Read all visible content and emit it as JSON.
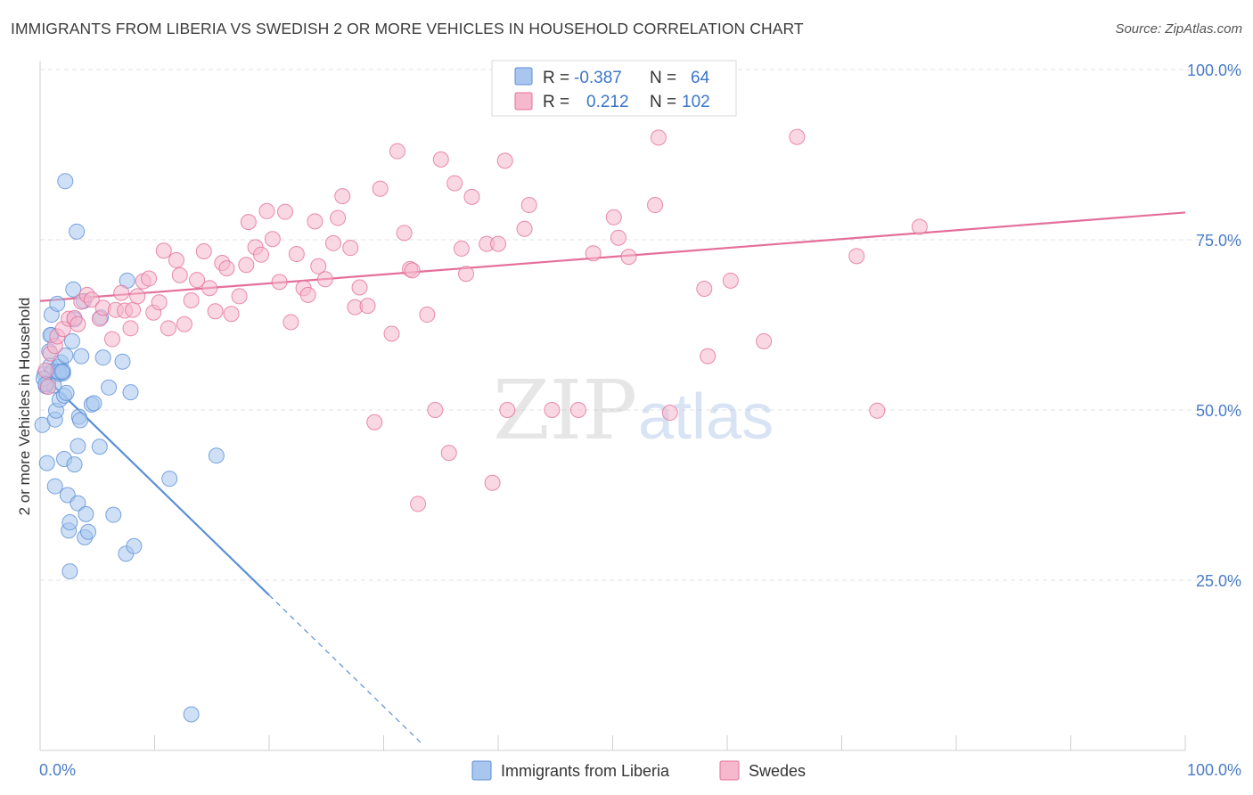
{
  "title": "IMMIGRANTS FROM LIBERIA VS SWEDISH 2 OR MORE VEHICLES IN HOUSEHOLD CORRELATION CHART",
  "source": "Source: ZipAtlas.com",
  "watermark": {
    "zip": "ZIP",
    "atlas": "atlas"
  },
  "colors": {
    "blue": "#5b8fd6",
    "blue_fill": "#a8c6ee",
    "pink": "#e46f9a",
    "pink_fill": "#f5b8cc",
    "axis_text": "#4a7cc7"
  },
  "legend": {
    "rows": [
      {
        "r_label": "R =",
        "r_value": "-0.387",
        "n_label": "N =",
        "n_value": "64"
      },
      {
        "r_label": "R =",
        "r_value": "0.212",
        "n_label": "N =",
        "n_value": "102"
      }
    ]
  },
  "bottom_legend": [
    "Immigrants from Liberia",
    "Swedes"
  ],
  "chart_data": {
    "type": "scatter",
    "xlabel": "",
    "ylabel": "2 or more Vehicles in Household",
    "xlim": [
      0,
      100
    ],
    "ylim": [
      0,
      100
    ],
    "x_tick_labels": [
      "0.0%",
      "100.0%"
    ],
    "y_ticks": [
      25,
      50,
      75,
      100
    ],
    "y_tick_labels": [
      "25.0%",
      "50.0%",
      "75.0%",
      "100.0%"
    ],
    "grid": true,
    "legend_position": "top-center",
    "series": [
      {
        "name": "Immigrants from Liberia",
        "color": "#5b8fd6",
        "r": -0.387,
        "n": 64,
        "trend": {
          "x0": 0.0,
          "y0": 55.5,
          "x1": 20.0,
          "y1": 22.8,
          "dashed_to_x": 33.5
        },
        "points": [
          [
            0.2,
            47.8
          ],
          [
            0.4,
            55.3
          ],
          [
            0.5,
            53.5
          ],
          [
            0.6,
            42.2
          ],
          [
            0.7,
            54.0
          ],
          [
            0.8,
            58.6
          ],
          [
            0.9,
            56.5
          ],
          [
            1.0,
            61.0
          ],
          [
            1.0,
            64.0
          ],
          [
            1.1,
            55.7
          ],
          [
            1.2,
            53.6
          ],
          [
            1.3,
            48.6
          ],
          [
            1.3,
            38.8
          ],
          [
            1.4,
            49.9
          ],
          [
            1.5,
            65.6
          ],
          [
            1.6,
            56.3
          ],
          [
            1.7,
            51.5
          ],
          [
            1.7,
            55.3
          ],
          [
            1.8,
            57.0
          ],
          [
            2.0,
            55.4
          ],
          [
            2.1,
            52.1
          ],
          [
            2.1,
            42.8
          ],
          [
            2.2,
            58.0
          ],
          [
            2.3,
            52.5
          ],
          [
            2.4,
            37.5
          ],
          [
            2.5,
            32.3
          ],
          [
            2.6,
            33.5
          ],
          [
            2.6,
            26.3
          ],
          [
            2.8,
            60.1
          ],
          [
            2.9,
            67.7
          ],
          [
            3.0,
            63.3
          ],
          [
            3.0,
            42.0
          ],
          [
            3.2,
            76.2
          ],
          [
            3.3,
            44.7
          ],
          [
            3.3,
            36.3
          ],
          [
            3.4,
            49.0
          ],
          [
            3.5,
            48.5
          ],
          [
            3.6,
            57.9
          ],
          [
            3.8,
            66.0
          ],
          [
            3.9,
            31.3
          ],
          [
            4.0,
            34.7
          ],
          [
            4.2,
            32.1
          ],
          [
            4.5,
            50.8
          ],
          [
            4.7,
            51.0
          ],
          [
            5.2,
            44.6
          ],
          [
            5.3,
            63.6
          ],
          [
            5.5,
            57.7
          ],
          [
            6.0,
            53.3
          ],
          [
            6.4,
            34.6
          ],
          [
            7.2,
            57.1
          ],
          [
            7.5,
            28.9
          ],
          [
            7.6,
            69.0
          ],
          [
            7.9,
            52.6
          ],
          [
            8.2,
            30.0
          ],
          [
            11.3,
            39.9
          ],
          [
            13.2,
            5.3
          ],
          [
            15.4,
            43.3
          ],
          [
            2.2,
            83.6
          ],
          [
            0.3,
            54.6
          ],
          [
            0.9,
            61.0
          ],
          [
            1.6,
            55.6
          ],
          [
            2.0,
            55.7
          ],
          [
            0.5,
            53.8
          ],
          [
            1.9,
            55.6
          ]
        ]
      },
      {
        "name": "Swedes",
        "color": "#e46f9a",
        "r": 0.212,
        "n": 102,
        "trend": {
          "x0": 0.0,
          "y0": 66.0,
          "x1": 100.0,
          "y1": 79.0
        },
        "points": [
          [
            0.5,
            55.8
          ],
          [
            0.7,
            53.4
          ],
          [
            0.9,
            58.3
          ],
          [
            1.3,
            59.4
          ],
          [
            1.5,
            60.8
          ],
          [
            2.0,
            61.9
          ],
          [
            2.5,
            63.4
          ],
          [
            3.0,
            63.5
          ],
          [
            3.3,
            62.6
          ],
          [
            3.6,
            65.9
          ],
          [
            4.1,
            66.9
          ],
          [
            4.5,
            66.2
          ],
          [
            5.2,
            63.4
          ],
          [
            5.5,
            65.0
          ],
          [
            6.3,
            60.4
          ],
          [
            6.6,
            64.7
          ],
          [
            7.1,
            67.2
          ],
          [
            7.4,
            64.6
          ],
          [
            7.9,
            62.0
          ],
          [
            8.1,
            64.7
          ],
          [
            8.5,
            66.7
          ],
          [
            9.0,
            68.9
          ],
          [
            9.5,
            69.3
          ],
          [
            9.9,
            64.3
          ],
          [
            10.4,
            65.8
          ],
          [
            10.8,
            73.4
          ],
          [
            11.2,
            62.0
          ],
          [
            11.9,
            72.0
          ],
          [
            12.2,
            69.8
          ],
          [
            12.6,
            62.6
          ],
          [
            13.2,
            66.1
          ],
          [
            13.7,
            69.1
          ],
          [
            14.3,
            73.3
          ],
          [
            14.8,
            67.9
          ],
          [
            15.3,
            64.5
          ],
          [
            15.9,
            71.6
          ],
          [
            16.3,
            70.8
          ],
          [
            16.7,
            64.1
          ],
          [
            17.4,
            66.7
          ],
          [
            18.0,
            71.3
          ],
          [
            18.2,
            77.6
          ],
          [
            18.8,
            73.9
          ],
          [
            19.3,
            72.8
          ],
          [
            19.8,
            79.2
          ],
          [
            20.3,
            75.1
          ],
          [
            20.9,
            68.8
          ],
          [
            21.4,
            79.1
          ],
          [
            21.9,
            62.9
          ],
          [
            22.4,
            72.9
          ],
          [
            23.0,
            67.9
          ],
          [
            23.4,
            66.9
          ],
          [
            24.0,
            77.7
          ],
          [
            24.3,
            71.1
          ],
          [
            24.9,
            69.2
          ],
          [
            25.6,
            74.5
          ],
          [
            26.0,
            78.2
          ],
          [
            26.4,
            81.4
          ],
          [
            27.1,
            73.8
          ],
          [
            27.5,
            65.1
          ],
          [
            27.9,
            68.0
          ],
          [
            28.6,
            65.3
          ],
          [
            29.2,
            48.2
          ],
          [
            29.7,
            82.5
          ],
          [
            30.7,
            61.2
          ],
          [
            31.2,
            88.0
          ],
          [
            31.8,
            76.0
          ],
          [
            32.3,
            70.7
          ],
          [
            32.5,
            70.5
          ],
          [
            33.0,
            36.2
          ],
          [
            33.8,
            64.0
          ],
          [
            34.5,
            50.0
          ],
          [
            35.0,
            86.8
          ],
          [
            35.7,
            43.7
          ],
          [
            36.2,
            83.3
          ],
          [
            36.8,
            73.7
          ],
          [
            37.2,
            70.0
          ],
          [
            37.7,
            81.3
          ],
          [
            39.0,
            74.4
          ],
          [
            39.5,
            39.3
          ],
          [
            40.0,
            74.4
          ],
          [
            40.6,
            86.6
          ],
          [
            40.8,
            50.0
          ],
          [
            42.3,
            76.6
          ],
          [
            42.7,
            80.1
          ],
          [
            43.0,
            94.5
          ],
          [
            44.7,
            50.0
          ],
          [
            47.0,
            50.0
          ],
          [
            48.3,
            73.0
          ],
          [
            50.1,
            78.3
          ],
          [
            50.5,
            75.3
          ],
          [
            51.4,
            72.5
          ],
          [
            53.7,
            80.1
          ],
          [
            54.0,
            90.0
          ],
          [
            55.0,
            49.6
          ],
          [
            58.0,
            67.8
          ],
          [
            58.3,
            57.9
          ],
          [
            60.3,
            69.0
          ],
          [
            63.2,
            60.1
          ],
          [
            66.1,
            90.1
          ],
          [
            71.3,
            72.6
          ],
          [
            73.1,
            49.9
          ],
          [
            76.8,
            76.9
          ]
        ]
      }
    ]
  }
}
